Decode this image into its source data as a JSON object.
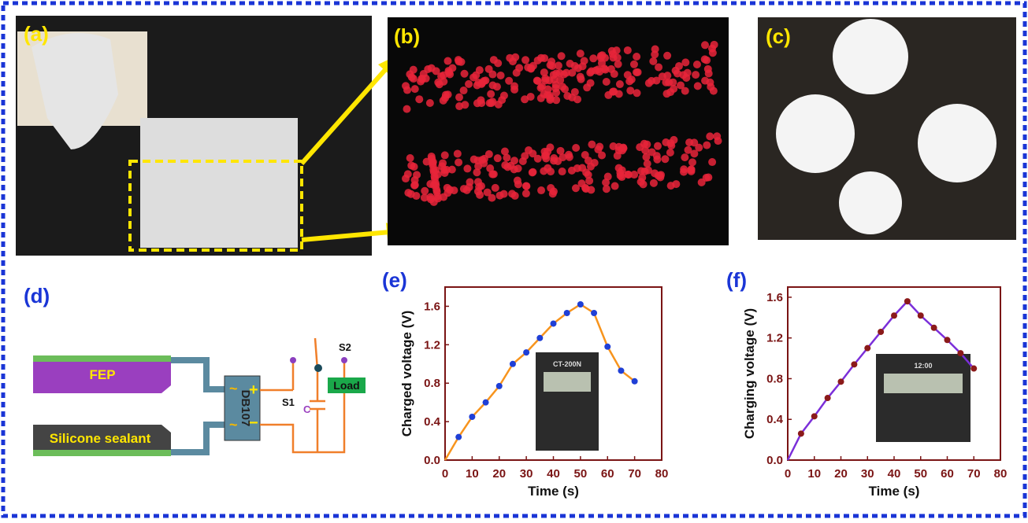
{
  "panels": {
    "a": {
      "label": "(a)"
    },
    "b": {
      "label": "(b)"
    },
    "c": {
      "label": "(c)"
    },
    "d": {
      "label": "(d)",
      "fep": "FEP",
      "silicone": "Silicone sealant",
      "rectifier": "DB107",
      "plus": "+",
      "minus": "−",
      "ac1": "~",
      "ac2": "~",
      "s1": "S1",
      "s2": "S2",
      "cap": "C",
      "load": "Load"
    }
  },
  "chart_data": [
    {
      "type": "line",
      "label": "(e)",
      "x_label": "Time (s)",
      "y_label": "Charged voltage (V)",
      "inset_text": "CT-200N",
      "x": [
        0,
        5,
        10,
        15,
        20,
        25,
        30,
        35,
        40,
        45,
        50,
        55,
        60,
        65,
        70
      ],
      "series": [
        {
          "values": [
            0,
            0.24,
            0.45,
            0.6,
            0.77,
            1.0,
            1.12,
            1.27,
            1.42,
            1.53,
            1.62,
            1.53,
            1.18,
            0.93,
            0.82
          ],
          "line_color": "#f7941d",
          "color": "#1f3fd6"
        }
      ],
      "xlim": [
        0,
        80
      ],
      "xticks": [
        0,
        10,
        20,
        30,
        40,
        50,
        60,
        70,
        80
      ],
      "ylim": [
        0,
        1.8
      ],
      "yticks": [
        {
          "value": 0,
          "label": "0.0"
        },
        0.4,
        0.8,
        1.2,
        1.6
      ]
    },
    {
      "type": "line",
      "label": "(f)",
      "x_label": "Time (s)",
      "y_label": "Charging voltage (V)",
      "inset_text": "12:00",
      "x": [
        0,
        5,
        10,
        15,
        20,
        25,
        30,
        35,
        40,
        45,
        50,
        55,
        60,
        65,
        70
      ],
      "series": [
        {
          "values": [
            0,
            0.26,
            0.43,
            0.61,
            0.77,
            0.94,
            1.1,
            1.26,
            1.42,
            1.56,
            1.42,
            1.3,
            1.18,
            1.05,
            0.9
          ],
          "line_color": "#7b2fd9",
          "color": "#8b1a1a"
        }
      ],
      "xlim": [
        0,
        80
      ],
      "xticks": [
        0,
        10,
        20,
        30,
        40,
        50,
        60,
        70,
        80
      ],
      "ylim": [
        0,
        1.7
      ],
      "yticks": [
        {
          "value": 0,
          "label": "0.0"
        },
        0.4,
        0.8,
        1.2,
        1.6
      ]
    }
  ]
}
